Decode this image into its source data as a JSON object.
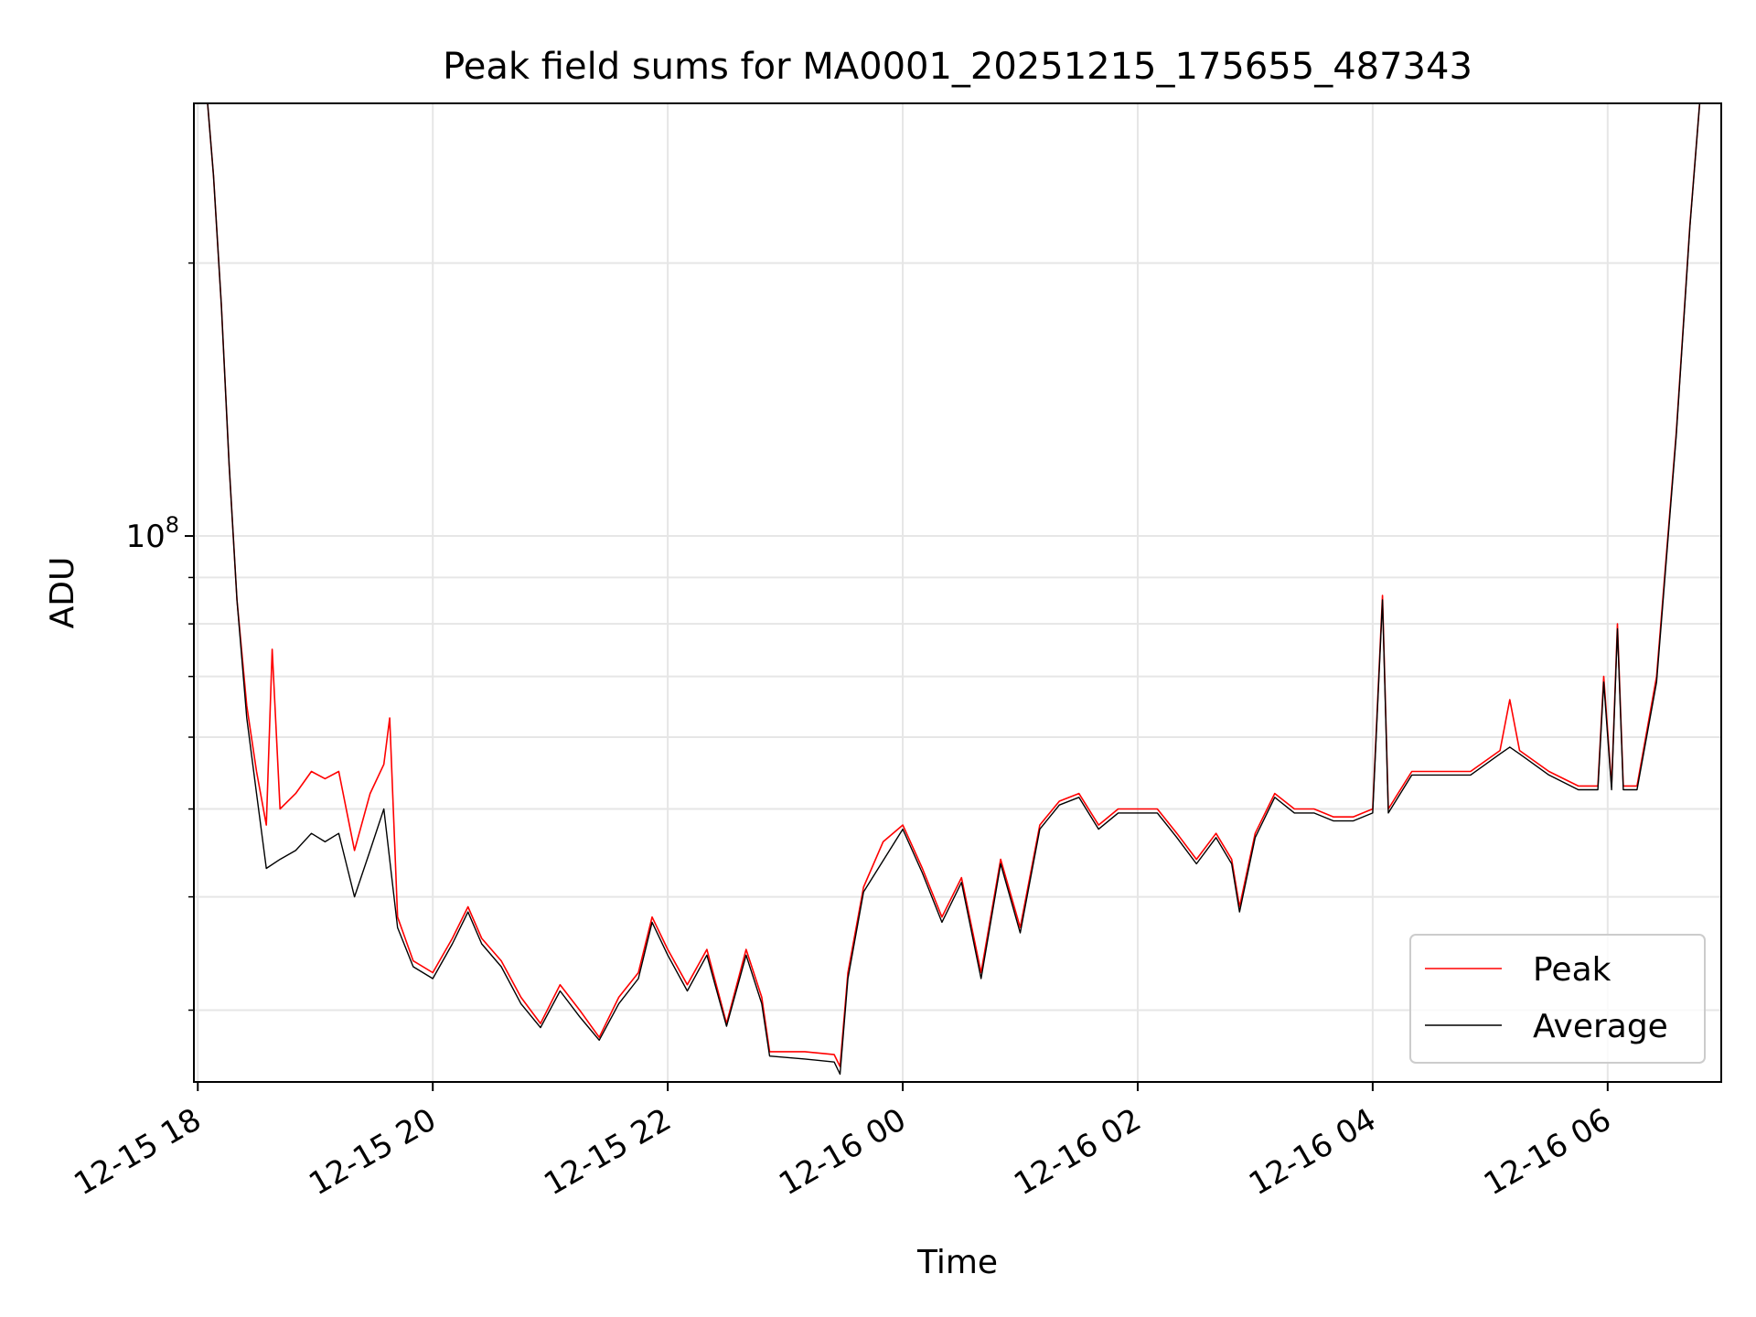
{
  "chart_data": {
    "type": "line",
    "title": "Peak field sums for MA0001_20251215_175655_487343",
    "xlabel": "Time",
    "ylabel": "ADU",
    "yscale": "log",
    "ylim": [
      25000000,
      300000000
    ],
    "xlim": [
      "2025-12-15 17:58",
      "2025-12-16 06:58"
    ],
    "grid": true,
    "legend_position": "lower-right",
    "x_ticks": [
      "12-15 18",
      "12-15 20",
      "12-15 22",
      "12-16 00",
      "12-16 02",
      "12-16 04",
      "12-16 06"
    ],
    "x_tick_times": [
      "2025-12-15 18:00",
      "2025-12-15 20:00",
      "2025-12-15 22:00",
      "2025-12-16 00:00",
      "2025-12-16 02:00",
      "2025-12-16 04:00",
      "2025-12-16 06:00"
    ],
    "y_ticks": [
      {
        "base": "10",
        "exp": "8",
        "value": 100000000
      }
    ],
    "y_minor_ticks": [
      30000000,
      40000000,
      50000000,
      60000000,
      70000000,
      80000000,
      90000000,
      200000000
    ],
    "series": [
      {
        "name": "Peak",
        "color": "#ff0000",
        "points": [
          [
            "2025-12-15 17:58",
            300000000
          ],
          [
            "2025-12-15 18:05",
            300000000
          ],
          [
            "2025-12-15 18:08",
            250000000
          ],
          [
            "2025-12-15 18:12",
            180000000
          ],
          [
            "2025-12-15 18:16",
            120000000
          ],
          [
            "2025-12-15 18:20",
            85000000
          ],
          [
            "2025-12-15 18:25",
            65000000
          ],
          [
            "2025-12-15 18:30",
            55000000
          ],
          [
            "2025-12-15 18:35",
            48000000
          ],
          [
            "2025-12-15 18:38",
            75000000
          ],
          [
            "2025-12-15 18:42",
            50000000
          ],
          [
            "2025-12-15 18:50",
            52000000
          ],
          [
            "2025-12-15 18:58",
            55000000
          ],
          [
            "2025-12-15 19:05",
            54000000
          ],
          [
            "2025-12-15 19:12",
            55000000
          ],
          [
            "2025-12-15 19:20",
            45000000
          ],
          [
            "2025-12-15 19:28",
            52000000
          ],
          [
            "2025-12-15 19:35",
            56000000
          ],
          [
            "2025-12-15 19:38",
            63000000
          ],
          [
            "2025-12-15 19:42",
            38000000
          ],
          [
            "2025-12-15 19:50",
            34000000
          ],
          [
            "2025-12-15 20:00",
            33000000
          ],
          [
            "2025-12-15 20:10",
            36000000
          ],
          [
            "2025-12-15 20:18",
            39000000
          ],
          [
            "2025-12-15 20:25",
            36000000
          ],
          [
            "2025-12-15 20:35",
            34000000
          ],
          [
            "2025-12-15 20:45",
            31000000
          ],
          [
            "2025-12-15 20:55",
            29000000
          ],
          [
            "2025-12-15 21:05",
            32000000
          ],
          [
            "2025-12-15 21:15",
            30000000
          ],
          [
            "2025-12-15 21:25",
            28000000
          ],
          [
            "2025-12-15 21:35",
            31000000
          ],
          [
            "2025-12-15 21:45",
            33000000
          ],
          [
            "2025-12-15 21:52",
            38000000
          ],
          [
            "2025-12-15 22:00",
            35000000
          ],
          [
            "2025-12-15 22:10",
            32000000
          ],
          [
            "2025-12-15 22:20",
            35000000
          ],
          [
            "2025-12-15 22:30",
            29000000
          ],
          [
            "2025-12-15 22:40",
            35000000
          ],
          [
            "2025-12-15 22:48",
            31000000
          ],
          [
            "2025-12-15 22:52",
            27000000
          ],
          [
            "2025-12-15 23:10",
            27000000
          ],
          [
            "2025-12-15 23:25",
            26800000
          ],
          [
            "2025-12-15 23:28",
            26000000
          ],
          [
            "2025-12-15 23:32",
            33000000
          ],
          [
            "2025-12-15 23:40",
            41000000
          ],
          [
            "2025-12-15 23:50",
            46000000
          ],
          [
            "2025-12-16 00:00",
            48000000
          ],
          [
            "2025-12-16 00:10",
            43000000
          ],
          [
            "2025-12-16 00:20",
            38000000
          ],
          [
            "2025-12-16 00:30",
            42000000
          ],
          [
            "2025-12-16 00:40",
            33000000
          ],
          [
            "2025-12-16 00:50",
            44000000
          ],
          [
            "2025-12-16 01:00",
            37000000
          ],
          [
            "2025-12-16 01:10",
            48000000
          ],
          [
            "2025-12-16 01:20",
            51000000
          ],
          [
            "2025-12-16 01:30",
            52000000
          ],
          [
            "2025-12-16 01:40",
            48000000
          ],
          [
            "2025-12-16 01:50",
            50000000
          ],
          [
            "2025-12-16 02:00",
            50000000
          ],
          [
            "2025-12-16 02:10",
            50000000
          ],
          [
            "2025-12-16 02:20",
            47000000
          ],
          [
            "2025-12-16 02:30",
            44000000
          ],
          [
            "2025-12-16 02:40",
            47000000
          ],
          [
            "2025-12-16 02:48",
            44000000
          ],
          [
            "2025-12-16 02:52",
            39000000
          ],
          [
            "2025-12-16 03:00",
            47000000
          ],
          [
            "2025-12-16 03:10",
            52000000
          ],
          [
            "2025-12-16 03:20",
            50000000
          ],
          [
            "2025-12-16 03:30",
            50000000
          ],
          [
            "2025-12-16 03:40",
            49000000
          ],
          [
            "2025-12-16 03:50",
            49000000
          ],
          [
            "2025-12-16 04:00",
            50000000
          ],
          [
            "2025-12-16 04:05",
            86000000
          ],
          [
            "2025-12-16 04:08",
            50000000
          ],
          [
            "2025-12-16 04:20",
            55000000
          ],
          [
            "2025-12-16 04:35",
            55000000
          ],
          [
            "2025-12-16 04:50",
            55000000
          ],
          [
            "2025-12-16 05:05",
            58000000
          ],
          [
            "2025-12-16 05:10",
            66000000
          ],
          [
            "2025-12-16 05:15",
            58000000
          ],
          [
            "2025-12-16 05:30",
            55000000
          ],
          [
            "2025-12-16 05:45",
            53000000
          ],
          [
            "2025-12-16 05:55",
            53000000
          ],
          [
            "2025-12-16 05:58",
            70000000
          ],
          [
            "2025-12-16 06:02",
            53000000
          ],
          [
            "2025-12-16 06:05",
            80000000
          ],
          [
            "2025-12-16 06:08",
            53000000
          ],
          [
            "2025-12-16 06:15",
            53000000
          ],
          [
            "2025-12-16 06:25",
            70000000
          ],
          [
            "2025-12-16 06:35",
            130000000
          ],
          [
            "2025-12-16 06:42",
            220000000
          ],
          [
            "2025-12-16 06:47",
            300000000
          ]
        ]
      },
      {
        "name": "Average",
        "color": "#000000",
        "points": [
          [
            "2025-12-15 17:58",
            300000000
          ],
          [
            "2025-12-15 18:05",
            300000000
          ],
          [
            "2025-12-15 18:08",
            250000000
          ],
          [
            "2025-12-15 18:12",
            180000000
          ],
          [
            "2025-12-15 18:16",
            120000000
          ],
          [
            "2025-12-15 18:20",
            85000000
          ],
          [
            "2025-12-15 18:25",
            63000000
          ],
          [
            "2025-12-15 18:30",
            52000000
          ],
          [
            "2025-12-15 18:35",
            43000000
          ],
          [
            "2025-12-15 18:42",
            44000000
          ],
          [
            "2025-12-15 18:50",
            45000000
          ],
          [
            "2025-12-15 18:58",
            47000000
          ],
          [
            "2025-12-15 19:05",
            46000000
          ],
          [
            "2025-12-15 19:12",
            47000000
          ],
          [
            "2025-12-15 19:20",
            40000000
          ],
          [
            "2025-12-15 19:28",
            45000000
          ],
          [
            "2025-12-15 19:35",
            50000000
          ],
          [
            "2025-12-15 19:42",
            37000000
          ],
          [
            "2025-12-15 19:50",
            33500000
          ],
          [
            "2025-12-15 20:00",
            32500000
          ],
          [
            "2025-12-15 20:10",
            35500000
          ],
          [
            "2025-12-15 20:18",
            38500000
          ],
          [
            "2025-12-15 20:25",
            35500000
          ],
          [
            "2025-12-15 20:35",
            33500000
          ],
          [
            "2025-12-15 20:45",
            30500000
          ],
          [
            "2025-12-15 20:55",
            28700000
          ],
          [
            "2025-12-15 21:05",
            31500000
          ],
          [
            "2025-12-15 21:15",
            29500000
          ],
          [
            "2025-12-15 21:25",
            27800000
          ],
          [
            "2025-12-15 21:35",
            30500000
          ],
          [
            "2025-12-15 21:45",
            32500000
          ],
          [
            "2025-12-15 21:52",
            37500000
          ],
          [
            "2025-12-15 22:00",
            34500000
          ],
          [
            "2025-12-15 22:10",
            31500000
          ],
          [
            "2025-12-15 22:20",
            34500000
          ],
          [
            "2025-12-15 22:30",
            28800000
          ],
          [
            "2025-12-15 22:40",
            34500000
          ],
          [
            "2025-12-15 22:48",
            30500000
          ],
          [
            "2025-12-15 22:52",
            26700000
          ],
          [
            "2025-12-15 23:10",
            26500000
          ],
          [
            "2025-12-15 23:25",
            26300000
          ],
          [
            "2025-12-15 23:28",
            25500000
          ],
          [
            "2025-12-15 23:32",
            32500000
          ],
          [
            "2025-12-15 23:40",
            40500000
          ],
          [
            "2025-12-16 00:00",
            47500000
          ],
          [
            "2025-12-16 00:10",
            42500000
          ],
          [
            "2025-12-16 00:20",
            37500000
          ],
          [
            "2025-12-16 00:30",
            41500000
          ],
          [
            "2025-12-16 00:40",
            32500000
          ],
          [
            "2025-12-16 00:50",
            43500000
          ],
          [
            "2025-12-16 01:00",
            36500000
          ],
          [
            "2025-12-16 01:10",
            47500000
          ],
          [
            "2025-12-16 01:20",
            50500000
          ],
          [
            "2025-12-16 01:30",
            51500000
          ],
          [
            "2025-12-16 01:40",
            47500000
          ],
          [
            "2025-12-16 01:50",
            49500000
          ],
          [
            "2025-12-16 02:00",
            49500000
          ],
          [
            "2025-12-16 02:10",
            49500000
          ],
          [
            "2025-12-16 02:20",
            46500000
          ],
          [
            "2025-12-16 02:30",
            43500000
          ],
          [
            "2025-12-16 02:40",
            46500000
          ],
          [
            "2025-12-16 02:48",
            43500000
          ],
          [
            "2025-12-16 02:52",
            38500000
          ],
          [
            "2025-12-16 03:00",
            46500000
          ],
          [
            "2025-12-16 03:10",
            51500000
          ],
          [
            "2025-12-16 03:20",
            49500000
          ],
          [
            "2025-12-16 03:30",
            49500000
          ],
          [
            "2025-12-16 03:40",
            48500000
          ],
          [
            "2025-12-16 03:50",
            48500000
          ],
          [
            "2025-12-16 04:00",
            49500000
          ],
          [
            "2025-12-16 04:05",
            85000000
          ],
          [
            "2025-12-16 04:08",
            49500000
          ],
          [
            "2025-12-16 04:20",
            54500000
          ],
          [
            "2025-12-16 04:35",
            54500000
          ],
          [
            "2025-12-16 04:50",
            54500000
          ],
          [
            "2025-12-16 05:05",
            57500000
          ],
          [
            "2025-12-16 05:10",
            58500000
          ],
          [
            "2025-12-16 05:15",
            57500000
          ],
          [
            "2025-12-16 05:30",
            54500000
          ],
          [
            "2025-12-16 05:45",
            52500000
          ],
          [
            "2025-12-16 05:55",
            52500000
          ],
          [
            "2025-12-16 05:58",
            69000000
          ],
          [
            "2025-12-16 06:02",
            52500000
          ],
          [
            "2025-12-16 06:05",
            79000000
          ],
          [
            "2025-12-16 06:08",
            52500000
          ],
          [
            "2025-12-16 06:15",
            52500000
          ],
          [
            "2025-12-16 06:25",
            69000000
          ],
          [
            "2025-12-16 06:35",
            129000000
          ],
          [
            "2025-12-16 06:42",
            219000000
          ],
          [
            "2025-12-16 06:47",
            300000000
          ]
        ]
      }
    ]
  }
}
